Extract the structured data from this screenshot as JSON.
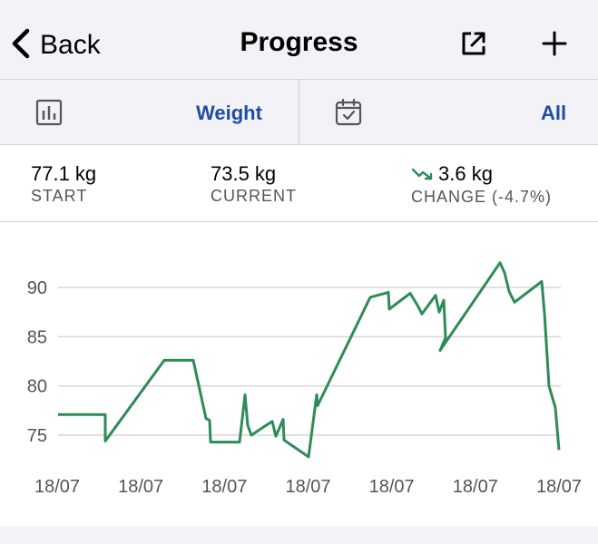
{
  "nav": {
    "back_label": "Back",
    "title": "Progress"
  },
  "selector": {
    "metric": "Weight",
    "range": "All"
  },
  "stats": {
    "start_value": "77.1 kg",
    "start_label": "START",
    "current_value": "73.5 kg",
    "current_label": "CURRENT",
    "change_value": "3.6 kg",
    "change_label": "CHANGE (-4.7%)"
  },
  "colors": {
    "line": "#2e8b57",
    "accent": "#1f4e9e",
    "grid": "#d6d6d6"
  },
  "chart_data": {
    "type": "line",
    "title": "",
    "xlabel": "",
    "ylabel": "",
    "ylim": [
      72,
      94
    ],
    "y_ticks": [
      90,
      85,
      80,
      75
    ],
    "x_tick_labels": [
      "18/07",
      "18/07",
      "18/07",
      "18/07",
      "18/07",
      "18/07",
      "18/07"
    ],
    "grid": true,
    "series": [
      {
        "values": [
          77.1,
          77.1,
          77.1,
          74.4,
          82.6,
          82.6,
          76.7,
          76.5,
          74.3,
          74.3,
          79.1,
          76.0,
          75.0,
          75.8,
          76.4,
          74.9,
          76.6,
          74.5,
          72.8,
          72.8,
          79.1,
          78.0,
          89.0,
          89.5,
          87.8,
          89.4,
          88.2,
          87.3,
          89.2,
          87.5,
          88.7,
          84.9,
          83.6,
          92.5,
          91.5,
          89.6,
          88.5,
          90.6,
          87.4,
          80.0,
          77.8,
          73.5
        ]
      }
    ]
  }
}
